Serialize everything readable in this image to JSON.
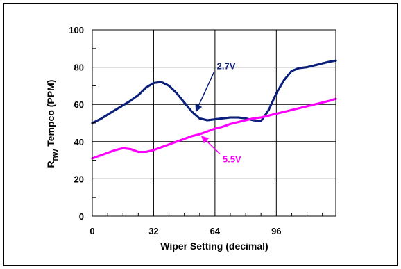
{
  "chart_data": {
    "type": "line",
    "title": "",
    "xlabel": "Wiper Setting (decimal)",
    "ylabel": {
      "main": "R",
      "sub": "BW",
      "rest": " Tempco (PPM)"
    },
    "xlim": [
      0,
      127
    ],
    "ylim": [
      0,
      100
    ],
    "xticks": [
      0,
      32,
      64,
      96
    ],
    "yticks": [
      0,
      20,
      40,
      60,
      80,
      100
    ],
    "grid": true,
    "series": [
      {
        "name": "2.7V",
        "color": "#0a1f7a",
        "x": [
          0,
          4,
          8,
          12,
          16,
          20,
          24,
          28,
          32,
          36,
          40,
          44,
          48,
          52,
          56,
          60,
          64,
          68,
          72,
          76,
          80,
          84,
          88,
          92,
          96,
          100,
          104,
          108,
          112,
          116,
          120,
          124,
          127
        ],
        "y": [
          50,
          52,
          54.5,
          57,
          59.5,
          62,
          65,
          69,
          71.5,
          72,
          70,
          66,
          61,
          56,
          52.5,
          51.5,
          52,
          52.5,
          53,
          53,
          52.5,
          51.5,
          51,
          57,
          66,
          73,
          78,
          79.5,
          80,
          81,
          82,
          83,
          83.5
        ]
      },
      {
        "name": "5.5V",
        "color": "#ff00ff",
        "x": [
          0,
          4,
          8,
          12,
          16,
          20,
          24,
          28,
          32,
          36,
          40,
          44,
          48,
          52,
          56,
          60,
          64,
          68,
          72,
          76,
          80,
          84,
          88,
          92,
          96,
          100,
          104,
          108,
          112,
          116,
          120,
          124,
          127
        ],
        "y": [
          31,
          32.5,
          34,
          35.5,
          36.5,
          36,
          34.5,
          34.5,
          35.5,
          37,
          38.5,
          40,
          41.5,
          43,
          44,
          45.5,
          47,
          48,
          49.5,
          50.5,
          51.5,
          52.5,
          53,
          54,
          55,
          56,
          57,
          58,
          59,
          60,
          61,
          62,
          63
        ]
      }
    ],
    "annotations": [
      {
        "text": "2.7V",
        "series": "2.7V",
        "at_x": 53,
        "label_x": 65,
        "label_y": 79
      },
      {
        "text": "5.5V",
        "series": "5.5V",
        "at_x": 56,
        "label_x": 68,
        "label_y": 29
      }
    ]
  }
}
